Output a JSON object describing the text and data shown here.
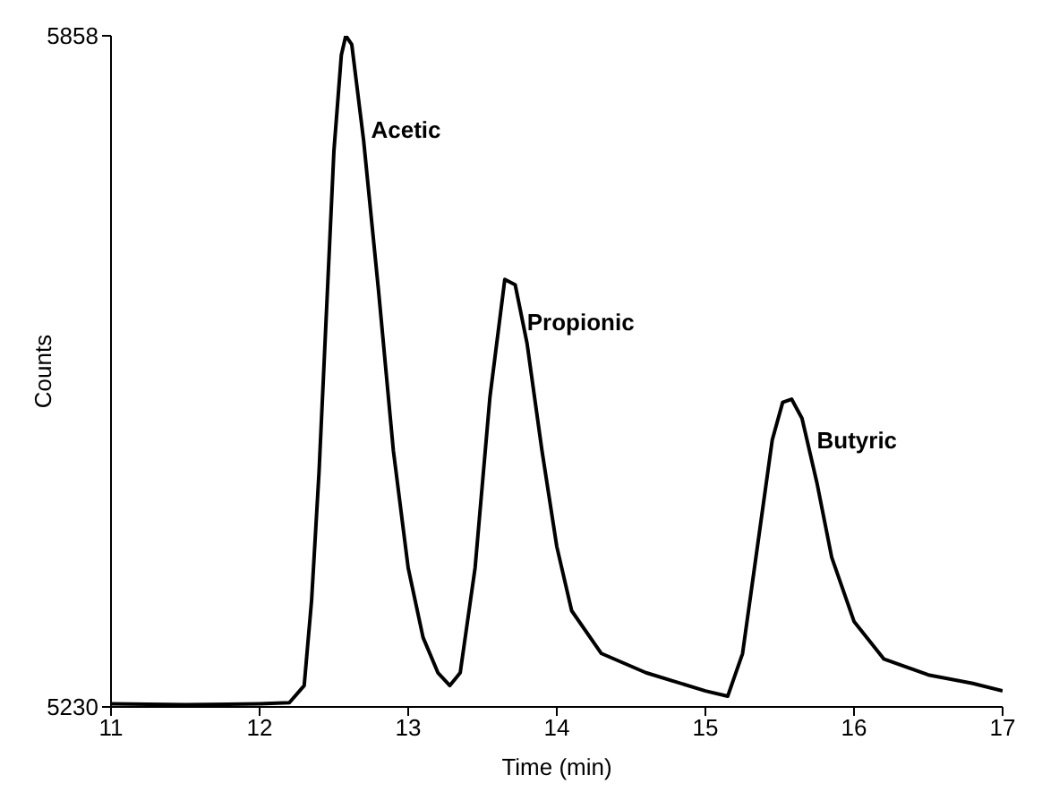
{
  "chart_data": {
    "type": "line",
    "xlabel": "Time (min)",
    "ylabel": "Counts",
    "xlim": [
      11,
      17
    ],
    "xticks": [
      11,
      12,
      13,
      14,
      15,
      16,
      17
    ],
    "ylim": [
      5230,
      5858
    ],
    "yticks": [
      5230,
      5858
    ],
    "grid": false,
    "marker": "none",
    "line_style": "solid",
    "x": [
      11.0,
      11.5,
      12.0,
      12.2,
      12.3,
      12.35,
      12.4,
      12.45,
      12.5,
      12.55,
      12.58,
      12.62,
      12.7,
      12.8,
      12.9,
      13.0,
      13.1,
      13.2,
      13.28,
      13.35,
      13.45,
      13.55,
      13.65,
      13.72,
      13.8,
      13.9,
      14.0,
      14.1,
      14.3,
      14.6,
      15.0,
      15.15,
      15.25,
      15.35,
      15.45,
      15.52,
      15.58,
      15.65,
      15.75,
      15.85,
      16.0,
      16.2,
      16.5,
      16.8,
      17.0
    ],
    "series": [
      {
        "color": "#000000",
        "values": [
          5233,
          5232,
          5233,
          5234,
          5250,
          5330,
          5450,
          5600,
          5750,
          5840,
          5858,
          5850,
          5760,
          5620,
          5470,
          5360,
          5295,
          5262,
          5250,
          5262,
          5360,
          5520,
          5630,
          5625,
          5570,
          5470,
          5380,
          5320,
          5280,
          5262,
          5245,
          5240,
          5280,
          5380,
          5480,
          5515,
          5518,
          5500,
          5440,
          5370,
          5310,
          5275,
          5260,
          5252,
          5245
        ]
      }
    ],
    "annotations": [
      {
        "text": "Acetic",
        "x": 12.75,
        "y": 5770
      },
      {
        "text": "Propionic",
        "x": 13.8,
        "y": 5590
      },
      {
        "text": "Butyric",
        "x": 15.75,
        "y": 5480
      }
    ]
  }
}
